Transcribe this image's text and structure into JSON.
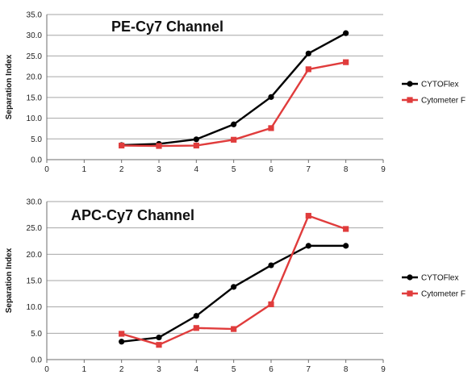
{
  "chart_data": [
    {
      "type": "line",
      "title": "PE-Cy7 Channel",
      "ylabel": "Separation Index",
      "xlabel": "",
      "xlim": [
        0,
        9
      ],
      "ylim": [
        0,
        35
      ],
      "xticks": [
        "0",
        "1",
        "2",
        "3",
        "4",
        "5",
        "6",
        "7",
        "8",
        "9"
      ],
      "yticks": [
        "0.0",
        "5.0",
        "10.0",
        "15.0",
        "20.0",
        "25.0",
        "30.0",
        "35.0"
      ],
      "grid": "horizontal",
      "legend": "right",
      "series": [
        {
          "name": "CYTOFlex",
          "color": "#000000",
          "marker": "circle",
          "x": [
            2,
            3,
            4,
            5,
            6,
            7,
            8
          ],
          "values": [
            3.5,
            3.8,
            4.9,
            8.5,
            15.1,
            25.6,
            30.5
          ]
        },
        {
          "name": "Cytometer F",
          "color": "#e03c3c",
          "marker": "square",
          "x": [
            2,
            3,
            4,
            5,
            6,
            7,
            8
          ],
          "values": [
            3.4,
            3.3,
            3.4,
            4.8,
            7.6,
            21.8,
            23.5
          ]
        }
      ]
    },
    {
      "type": "line",
      "title": "APC-Cy7 Channel",
      "ylabel": "Separation Index",
      "xlabel": "",
      "xlim": [
        0,
        9
      ],
      "ylim": [
        0,
        30
      ],
      "xticks": [
        "0",
        "1",
        "2",
        "3",
        "4",
        "5",
        "6",
        "7",
        "8",
        "9"
      ],
      "yticks": [
        "0.0",
        "5.0",
        "10.0",
        "15.0",
        "20.0",
        "25.0",
        "30.0"
      ],
      "grid": "horizontal",
      "legend": "right",
      "series": [
        {
          "name": "CYTOFlex",
          "color": "#000000",
          "marker": "circle",
          "x": [
            2,
            3,
            4,
            5,
            6,
            7,
            8
          ],
          "values": [
            3.4,
            4.2,
            8.3,
            13.8,
            17.9,
            21.6,
            21.6
          ]
        },
        {
          "name": "Cytometer F",
          "color": "#e03c3c",
          "marker": "square",
          "x": [
            2,
            3,
            4,
            5,
            6,
            7,
            8
          ],
          "values": [
            4.9,
            2.8,
            6.0,
            5.8,
            10.5,
            27.3,
            24.8
          ]
        }
      ]
    }
  ]
}
